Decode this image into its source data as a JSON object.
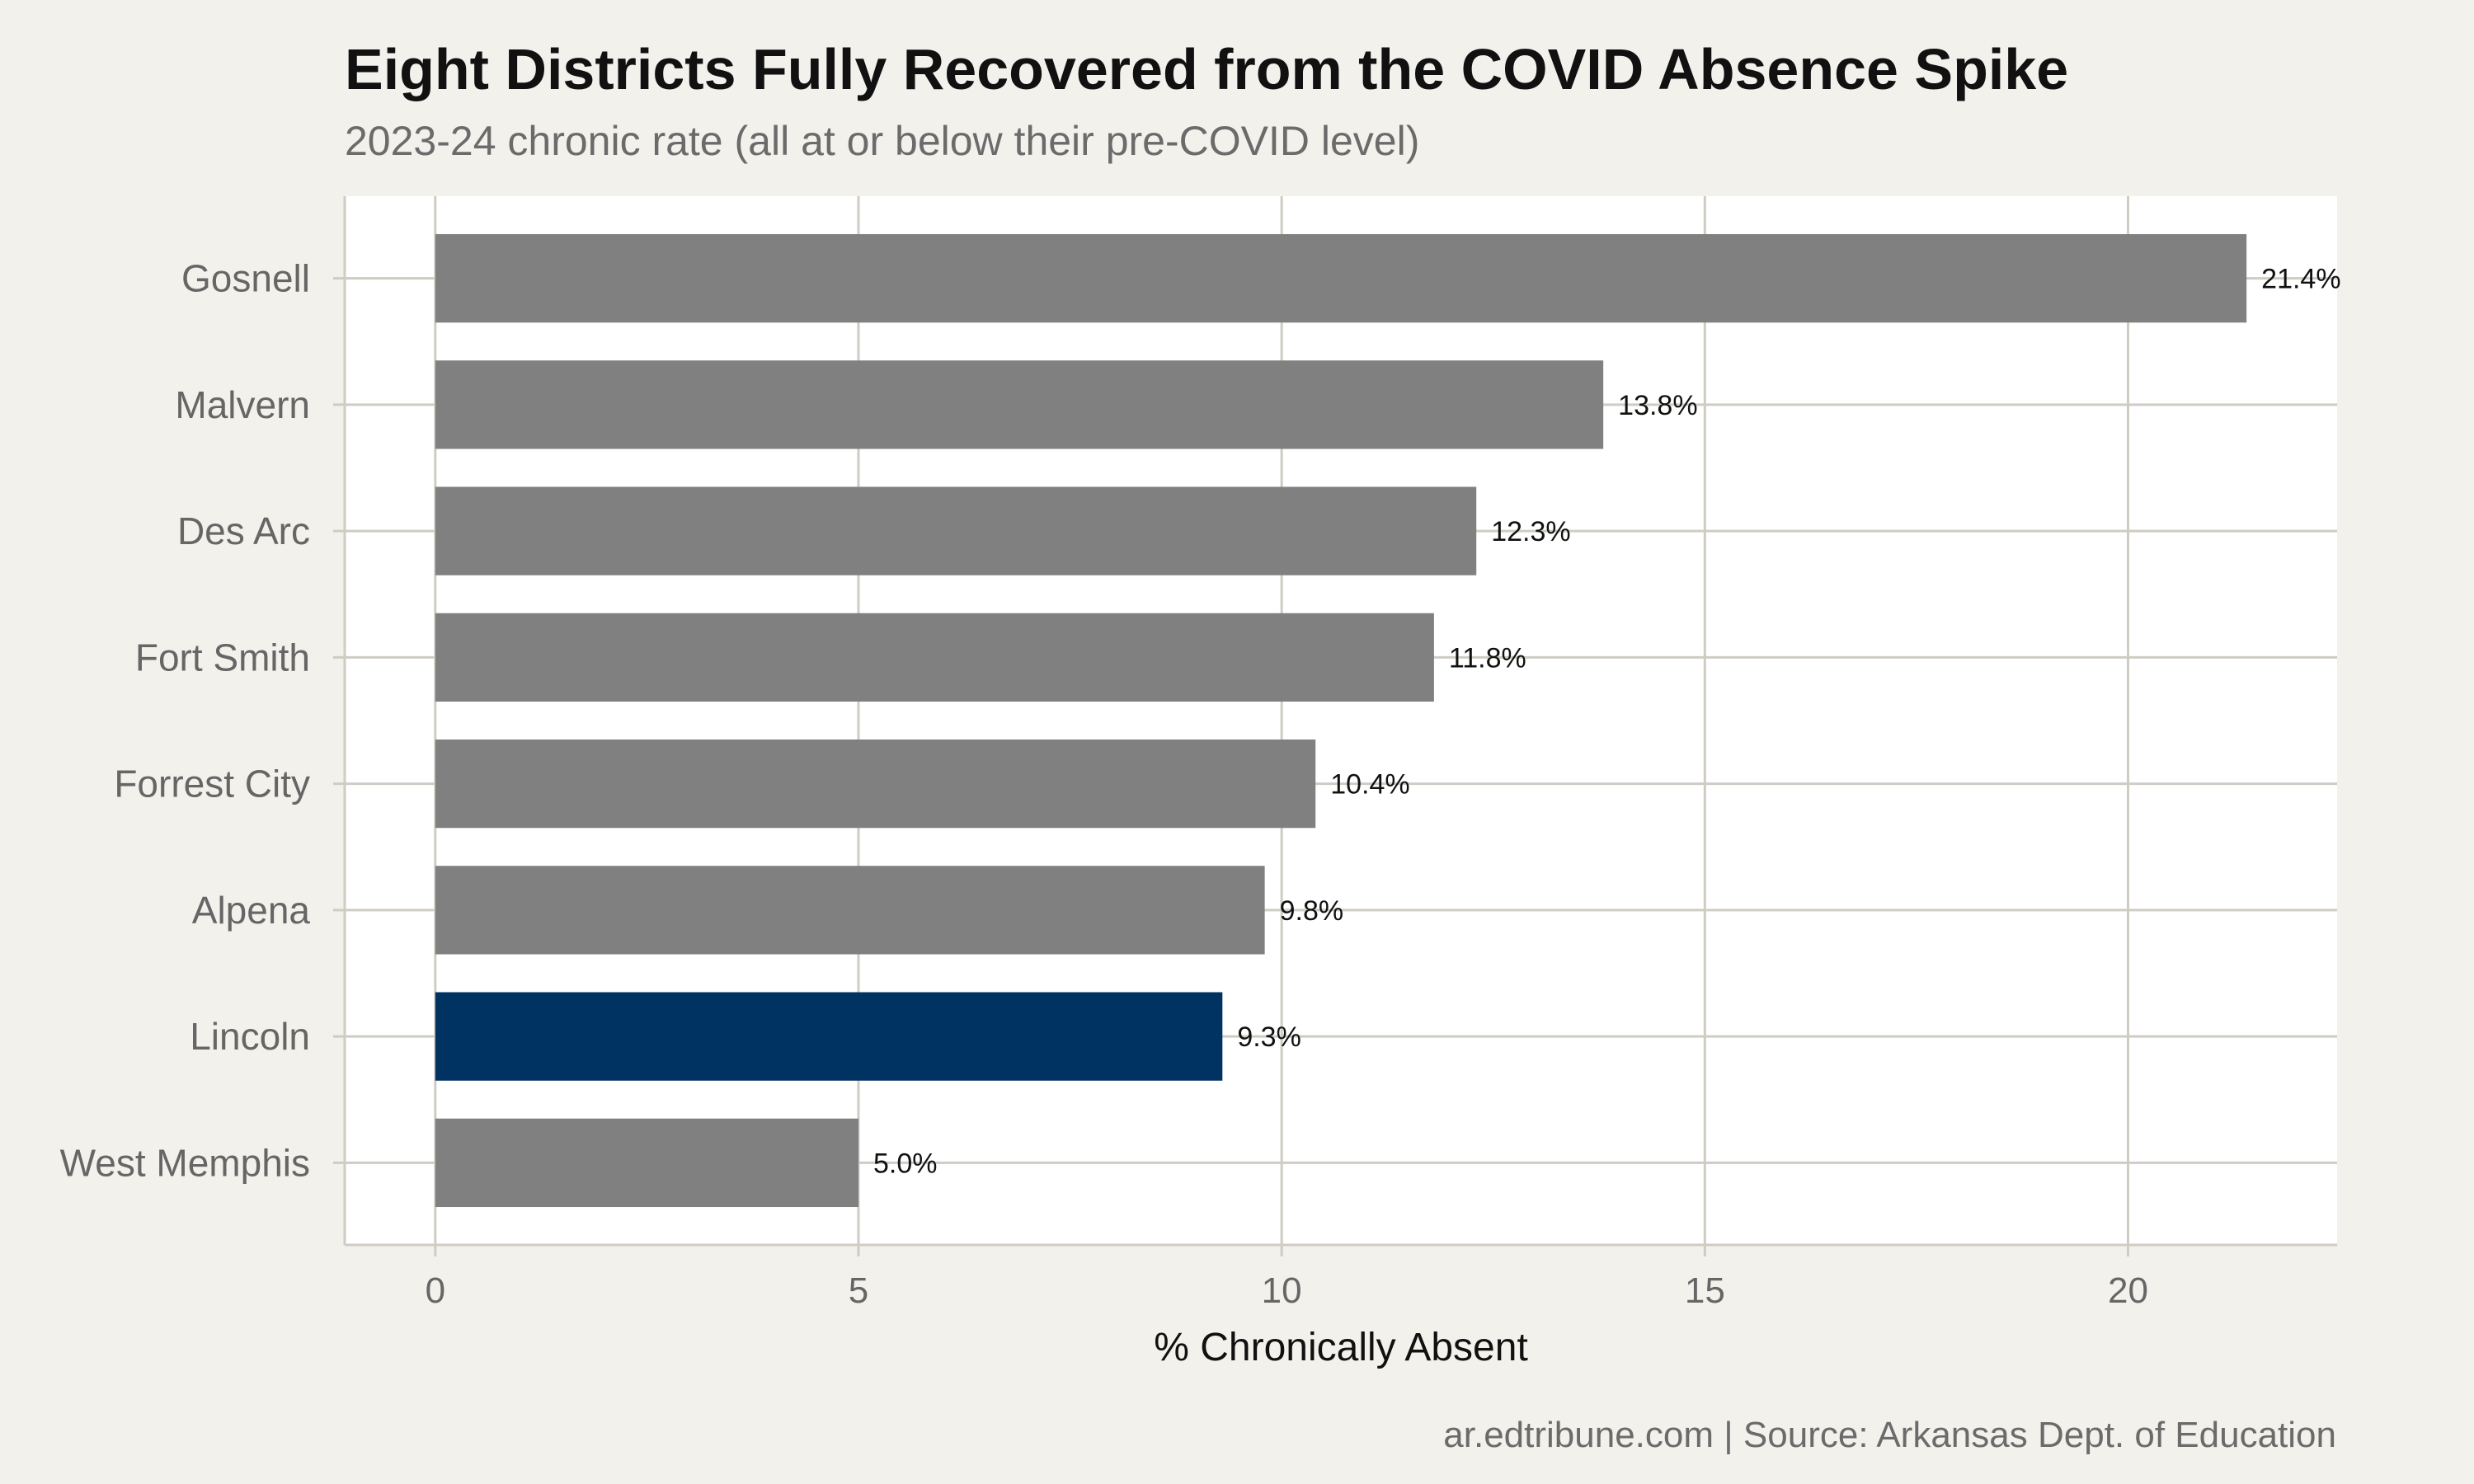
{
  "title": "Eight Districts Fully Recovered from the COVID Absence Spike",
  "subtitle": "2023-24 chronic rate (all at or below their pre-COVID level)",
  "caption": "ar.edtribune.com | Source: Arkansas Dept. of Education",
  "colors": {
    "background": "#f3f1ec",
    "panel": "#ffffff",
    "grid": "#cfccc4",
    "bar_default": "#808080",
    "bar_highlight": "#003262"
  },
  "chart_data": {
    "type": "bar",
    "orientation": "horizontal",
    "categories": [
      "Gosnell",
      "Malvern",
      "Des Arc",
      "Fort Smith",
      "Forrest City",
      "Alpena",
      "Lincoln",
      "West Memphis"
    ],
    "values": [
      21.4,
      13.8,
      12.3,
      11.8,
      10.4,
      9.8,
      9.3,
      5.0
    ],
    "data_labels": [
      "21.4%",
      "13.8%",
      "12.3%",
      "11.8%",
      "10.4%",
      "9.8%",
      "9.3%",
      "5.0%"
    ],
    "highlight": "Lincoln",
    "xlabel": "% Chronically Absent",
    "ylabel": "",
    "xlim": [
      -1.07,
      22.47
    ],
    "xticks": [
      0,
      5,
      10,
      15,
      20
    ],
    "grid": true,
    "legend": "none"
  }
}
